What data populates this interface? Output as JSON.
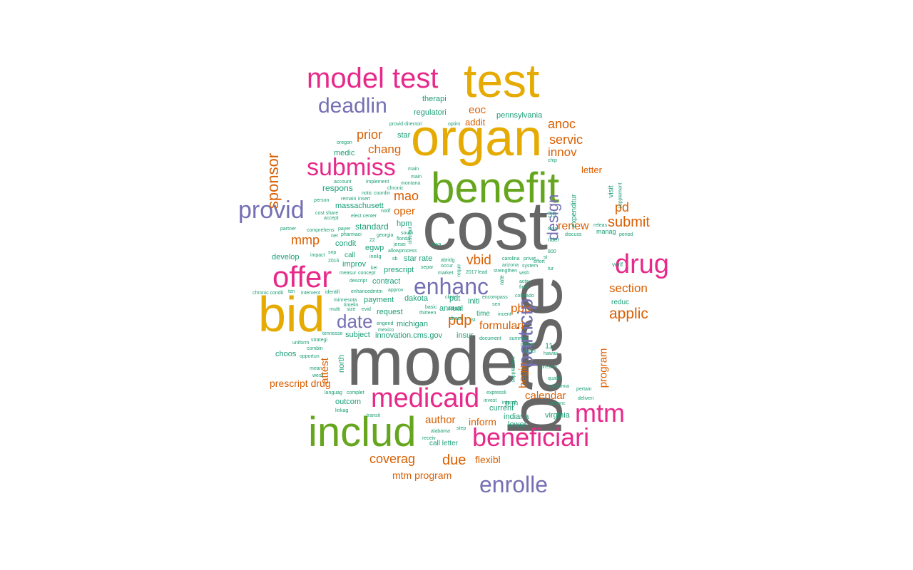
{
  "colors": {
    "gray": "#666666",
    "teal": "#1b9e77",
    "orange": "#d95f02",
    "purple": "#7570b3",
    "pink": "#e7298a",
    "green": "#66a61e",
    "gold": "#e6ab02"
  },
  "words": [
    {
      "text": "cost",
      "color": "gray"
    },
    {
      "text": "model",
      "color": "gray"
    },
    {
      "text": "base",
      "color": "gray"
    },
    {
      "text": "organ",
      "color": "gold"
    },
    {
      "text": "test",
      "color": "gold"
    },
    {
      "text": "bid",
      "color": "gold"
    },
    {
      "text": "benefit",
      "color": "green"
    },
    {
      "text": "includ",
      "color": "green"
    },
    {
      "text": "model test",
      "color": "pink"
    },
    {
      "text": "offer",
      "color": "pink"
    },
    {
      "text": "submiss",
      "color": "pink"
    },
    {
      "text": "drug",
      "color": "pink"
    },
    {
      "text": "medicaid",
      "color": "pink"
    },
    {
      "text": "mtm",
      "color": "pink"
    },
    {
      "text": "beneficiari",
      "color": "pink"
    },
    {
      "text": "deadlin",
      "color": "purple"
    },
    {
      "text": "provid",
      "color": "purple"
    },
    {
      "text": "enhanc",
      "color": "purple"
    },
    {
      "text": "date",
      "color": "purple"
    },
    {
      "text": "particip",
      "color": "purple"
    },
    {
      "text": "enrolle",
      "color": "purple"
    },
    {
      "text": "design",
      "color": "purple"
    },
    {
      "text": "sponsor",
      "color": "orange"
    },
    {
      "text": "prior",
      "color": "orange"
    },
    {
      "text": "chang",
      "color": "orange"
    },
    {
      "text": "mao",
      "color": "orange"
    },
    {
      "text": "oper",
      "color": "orange"
    },
    {
      "text": "mmp",
      "color": "orange"
    },
    {
      "text": "vbid",
      "color": "orange"
    },
    {
      "text": "pdp",
      "color": "orange"
    },
    {
      "text": "anoc",
      "color": "orange"
    },
    {
      "text": "servic",
      "color": "orange"
    },
    {
      "text": "innov",
      "color": "orange"
    },
    {
      "text": "eoc",
      "color": "orange"
    },
    {
      "text": "addit",
      "color": "orange"
    },
    {
      "text": "letter",
      "color": "orange"
    },
    {
      "text": "pd",
      "color": "orange"
    },
    {
      "text": "submit",
      "color": "orange"
    },
    {
      "text": "renew",
      "color": "orange"
    },
    {
      "text": "section",
      "color": "orange"
    },
    {
      "text": "applic",
      "color": "orange"
    },
    {
      "text": "pbp",
      "color": "orange"
    },
    {
      "text": "formulari",
      "color": "orange"
    },
    {
      "text": "begin",
      "color": "orange"
    },
    {
      "text": "calendar",
      "color": "orange"
    },
    {
      "text": "program",
      "color": "orange"
    },
    {
      "text": "attest",
      "color": "orange"
    },
    {
      "text": "prescript drug",
      "color": "orange"
    },
    {
      "text": "author",
      "color": "orange"
    },
    {
      "text": "inform",
      "color": "orange"
    },
    {
      "text": "coverag",
      "color": "orange"
    },
    {
      "text": "due",
      "color": "orange"
    },
    {
      "text": "flexibl",
      "color": "orange"
    },
    {
      "text": "mtm program",
      "color": "orange"
    },
    {
      "text": "therapi",
      "color": "teal"
    },
    {
      "text": "regulatori",
      "color": "teal"
    },
    {
      "text": "pennsylvania",
      "color": "teal"
    },
    {
      "text": "star",
      "color": "teal"
    },
    {
      "text": "medic",
      "color": "teal"
    },
    {
      "text": "respons",
      "color": "teal"
    },
    {
      "text": "massachusett",
      "color": "teal"
    },
    {
      "text": "standard",
      "color": "teal"
    },
    {
      "text": "hpm",
      "color": "teal"
    },
    {
      "text": "condit",
      "color": "teal"
    },
    {
      "text": "egwp",
      "color": "teal"
    },
    {
      "text": "develop",
      "color": "teal"
    },
    {
      "text": "call",
      "color": "teal"
    },
    {
      "text": "improv",
      "color": "teal"
    },
    {
      "text": "prescript",
      "color": "teal"
    },
    {
      "text": "star rate",
      "color": "teal"
    },
    {
      "text": "contract",
      "color": "teal"
    },
    {
      "text": "payment",
      "color": "teal"
    },
    {
      "text": "dakota",
      "color": "teal"
    },
    {
      "text": "pdt",
      "color": "teal"
    },
    {
      "text": "initi",
      "color": "teal"
    },
    {
      "text": "request",
      "color": "teal"
    },
    {
      "text": "annual",
      "color": "teal"
    },
    {
      "text": "michigan",
      "color": "teal"
    },
    {
      "text": "time",
      "color": "teal"
    },
    {
      "text": "subject",
      "color": "teal"
    },
    {
      "text": "innovation.cms.gov",
      "color": "teal"
    },
    {
      "text": "insur",
      "color": "teal"
    },
    {
      "text": "choos",
      "color": "teal"
    },
    {
      "text": "north",
      "color": "teal"
    },
    {
      "text": "outcom",
      "color": "teal"
    },
    {
      "text": "current",
      "color": "teal"
    },
    {
      "text": "p.m",
      "color": "teal"
    },
    {
      "text": "indiana",
      "color": "teal"
    },
    {
      "text": "virginia",
      "color": "teal"
    },
    {
      "text": "lower",
      "color": "teal"
    },
    {
      "text": "call letter",
      "color": "teal"
    },
    {
      "text": "11",
      "color": "teal"
    },
    {
      "text": "59",
      "color": "teal"
    },
    {
      "text": "expenditur",
      "color": "teal"
    },
    {
      "text": "visit",
      "color": "teal"
    },
    {
      "text": "reduc",
      "color": "teal"
    },
    {
      "text": "manag",
      "color": "teal"
    },
    {
      "text": "verif",
      "color": "teal"
    },
    {
      "text": "rider",
      "color": "teal"
    },
    {
      "text": "texa",
      "color": "teal"
    },
    {
      "text": "discuss",
      "color": "teal"
    },
    {
      "text": "period",
      "color": "teal"
    },
    {
      "text": "releas",
      "color": "teal"
    },
    {
      "text": "supplement",
      "color": "teal"
    },
    {
      "text": "chip",
      "color": "teal"
    },
    {
      "text": "provid directori",
      "color": "teal"
    },
    {
      "text": "optim",
      "color": "teal"
    },
    {
      "text": "oregon",
      "color": "teal"
    },
    {
      "text": "account",
      "color": "teal"
    },
    {
      "text": "implement",
      "color": "teal"
    },
    {
      "text": "chronic",
      "color": "teal"
    },
    {
      "text": "main",
      "color": "teal"
    },
    {
      "text": "montana",
      "color": "teal"
    },
    {
      "text": "person",
      "color": "teal"
    },
    {
      "text": "remain",
      "color": "teal"
    },
    {
      "text": "insert",
      "color": "teal"
    },
    {
      "text": "notic",
      "color": "teal"
    },
    {
      "text": "coordin",
      "color": "teal"
    },
    {
      "text": "cost share",
      "color": "teal"
    },
    {
      "text": "elect center",
      "color": "teal"
    },
    {
      "text": "notif",
      "color": "teal"
    },
    {
      "text": "accept",
      "color": "teal"
    },
    {
      "text": "partner",
      "color": "teal"
    },
    {
      "text": "comprehens",
      "color": "teal"
    },
    {
      "text": "payer",
      "color": "teal"
    },
    {
      "text": "net",
      "color": "teal"
    },
    {
      "text": "pharmaci",
      "color": "teal"
    },
    {
      "text": "georgia",
      "color": "teal"
    },
    {
      "text": "south",
      "color": "teal"
    },
    {
      "text": "florida",
      "color": "teal"
    },
    {
      "text": "jersei",
      "color": "teal"
    },
    {
      "text": "22",
      "color": "teal"
    },
    {
      "text": "snp",
      "color": "teal"
    },
    {
      "text": "impact",
      "color": "teal"
    },
    {
      "text": "ineilg",
      "color": "teal"
    },
    {
      "text": "allow",
      "color": "teal"
    },
    {
      "text": "process",
      "color": "teal"
    },
    {
      "text": "2016",
      "color": "teal"
    },
    {
      "text": "sb",
      "color": "teal"
    },
    {
      "text": "kei",
      "color": "teal"
    },
    {
      "text": "measur",
      "color": "teal"
    },
    {
      "text": "concept",
      "color": "teal"
    },
    {
      "text": "descript",
      "color": "teal"
    },
    {
      "text": "chronic condit",
      "color": "teal"
    },
    {
      "text": "ten",
      "color": "teal"
    },
    {
      "text": "intervent",
      "color": "teal"
    },
    {
      "text": "identifi",
      "color": "teal"
    },
    {
      "text": "enhancedmtm",
      "color": "teal"
    },
    {
      "text": "approv",
      "color": "teal"
    },
    {
      "text": "minnesota",
      "color": "teal"
    },
    {
      "text": "timelin",
      "color": "teal"
    },
    {
      "text": "multi",
      "color": "teal"
    },
    {
      "text": "size",
      "color": "teal"
    },
    {
      "text": "evid",
      "color": "teal"
    },
    {
      "text": "engend",
      "color": "teal"
    },
    {
      "text": "mexico",
      "color": "teal"
    },
    {
      "text": "tennesse",
      "color": "teal"
    },
    {
      "text": "strategi",
      "color": "teal"
    },
    {
      "text": "uniform",
      "color": "teal"
    },
    {
      "text": "combin",
      "color": "teal"
    },
    {
      "text": "opportun",
      "color": "teal"
    },
    {
      "text": "mean",
      "color": "teal"
    },
    {
      "text": "west",
      "color": "teal"
    },
    {
      "text": "languag",
      "color": "teal"
    },
    {
      "text": "complet",
      "color": "teal"
    },
    {
      "text": "linkag",
      "color": "teal"
    },
    {
      "text": "transit",
      "color": "teal"
    },
    {
      "text": "alabama",
      "color": "teal"
    },
    {
      "text": "step",
      "color": "teal"
    },
    {
      "text": "receiv",
      "color": "teal"
    },
    {
      "text": "expressli",
      "color": "teal"
    },
    {
      "text": "invest",
      "color": "teal"
    },
    {
      "text": "intend",
      "color": "teal"
    },
    {
      "text": "advanc",
      "color": "teal"
    },
    {
      "text": "california",
      "color": "teal"
    },
    {
      "text": "pertain",
      "color": "teal"
    },
    {
      "text": "deliveri",
      "color": "teal"
    },
    {
      "text": "qualiti",
      "color": "teal"
    },
    {
      "text": "preserv",
      "color": "teal"
    },
    {
      "text": "hawaii",
      "color": "teal"
    },
    {
      "text": "finder",
      "color": "teal"
    },
    {
      "text": "parent",
      "color": "teal"
    },
    {
      "text": "summari",
      "color": "teal"
    },
    {
      "text": "document",
      "color": "teal"
    },
    {
      "text": "thirteen",
      "color": "teal"
    },
    {
      "text": "basic",
      "color": "teal"
    },
    {
      "text": "direct",
      "color": "teal"
    },
    {
      "text": "list",
      "color": "teal"
    },
    {
      "text": "incent",
      "color": "teal"
    },
    {
      "text": "adjust",
      "color": "teal"
    },
    {
      "text": "seri",
      "color": "teal"
    },
    {
      "text": "encompass",
      "color": "teal"
    },
    {
      "text": "clinic",
      "color": "teal"
    },
    {
      "text": "colorado",
      "color": "teal"
    },
    {
      "text": "activ",
      "color": "teal"
    },
    {
      "text": "final",
      "color": "teal"
    },
    {
      "text": "strengthen",
      "color": "teal"
    },
    {
      "text": "wish",
      "color": "teal"
    },
    {
      "text": "lead",
      "color": "teal"
    },
    {
      "text": "2017",
      "color": "teal"
    },
    {
      "text": "market",
      "color": "teal"
    },
    {
      "text": "occur",
      "color": "teal"
    },
    {
      "text": "separ",
      "color": "teal"
    },
    {
      "text": "abridg",
      "color": "teal"
    },
    {
      "text": "carolina",
      "color": "teal"
    },
    {
      "text": "privat",
      "color": "teal"
    },
    {
      "text": "effort",
      "color": "teal"
    },
    {
      "text": "arizona",
      "color": "teal"
    },
    {
      "text": "system",
      "color": "teal"
    },
    {
      "text": "800",
      "color": "teal"
    },
    {
      "text": "st",
      "color": "teal"
    },
    {
      "text": "tur",
      "color": "teal"
    },
    {
      "text": "lowa",
      "color": "teal"
    },
    {
      "text": "requir",
      "color": "teal"
    },
    {
      "text": "rate",
      "color": "teal"
    },
    {
      "text": "main",
      "color": "teal"
    },
    {
      "text": "distribut",
      "color": "teal"
    },
    {
      "text": "supplement",
      "color": "teal"
    }
  ]
}
